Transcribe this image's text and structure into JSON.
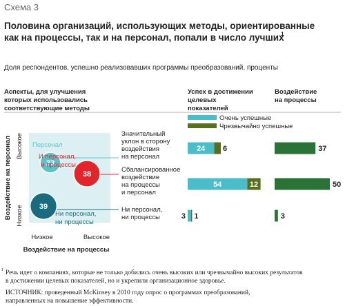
{
  "header": {
    "label": "Схема 3",
    "title_lines": [
      "Половина организаций, использующих методы, ориентированные",
      "как на процессы, так и на персонал, попали в число лучших"
    ],
    "title_note": "1",
    "subtitle": "Доля респондентов, успешно реализовавших программы преобразований, проценты"
  },
  "chart_data": [
    {
      "type": "bubble",
      "title_lines": [
        "Аспекты, для улучшения",
        "которых использовались",
        "соответствующие методы"
      ],
      "y_label": "Воздействие на персонал",
      "y_levels": [
        "Высокое",
        "Низкое"
      ],
      "x_label": "Воздействие на процессы",
      "x_levels": [
        "Низкое",
        "Высокое"
      ],
      "categories": [
        [
          "Персонал"
        ],
        [
          "И персонал,",
          "и процессы"
        ],
        [
          "Ни персонал,",
          "ни процессы"
        ]
      ],
      "values": [
        23,
        38,
        39
      ],
      "colors": [
        "#5cc3c9",
        "#e2252b",
        "#1b6b80"
      ]
    },
    {
      "type": "stacked-hbar",
      "title_lines": [
        "Успех в достижении",
        "целевых",
        "показателей"
      ],
      "categories": [
        [
          "Значительный",
          "уклон в сторону",
          "воздействия",
          "на персонал"
        ],
        [
          "Сбалансированное",
          "воздействие",
          "на процессы",
          "и персонал"
        ],
        [
          "Ни персонал,",
          "ни процессы"
        ]
      ],
      "series": [
        {
          "name": "Очень успешные",
          "color": "#4bbdc8",
          "values": [
            24,
            54,
            3
          ]
        },
        {
          "name": "Чрезвычайно успешные",
          "color": "#5a6e1f",
          "values": [
            6,
            12,
            1
          ]
        }
      ]
    },
    {
      "type": "hbar",
      "title_lines": [
        "Воздействие",
        "на процессы"
      ],
      "color": "#2a7235",
      "values": [
        37,
        50,
        3
      ]
    }
  ],
  "footnote": {
    "marker": "1",
    "lines": [
      "Речь идет о компаниях, которые не только добились очень высоких или чрезвычайно высоких результатов",
      "в достижении целевых показателей, но и укрепили организационное здоровье."
    ]
  },
  "source": [
    "ИСТОЧНИК: проведенный McKinsey в 2010 году опрос о программах преобразований,",
    "направленных на повышение эффективности."
  ]
}
